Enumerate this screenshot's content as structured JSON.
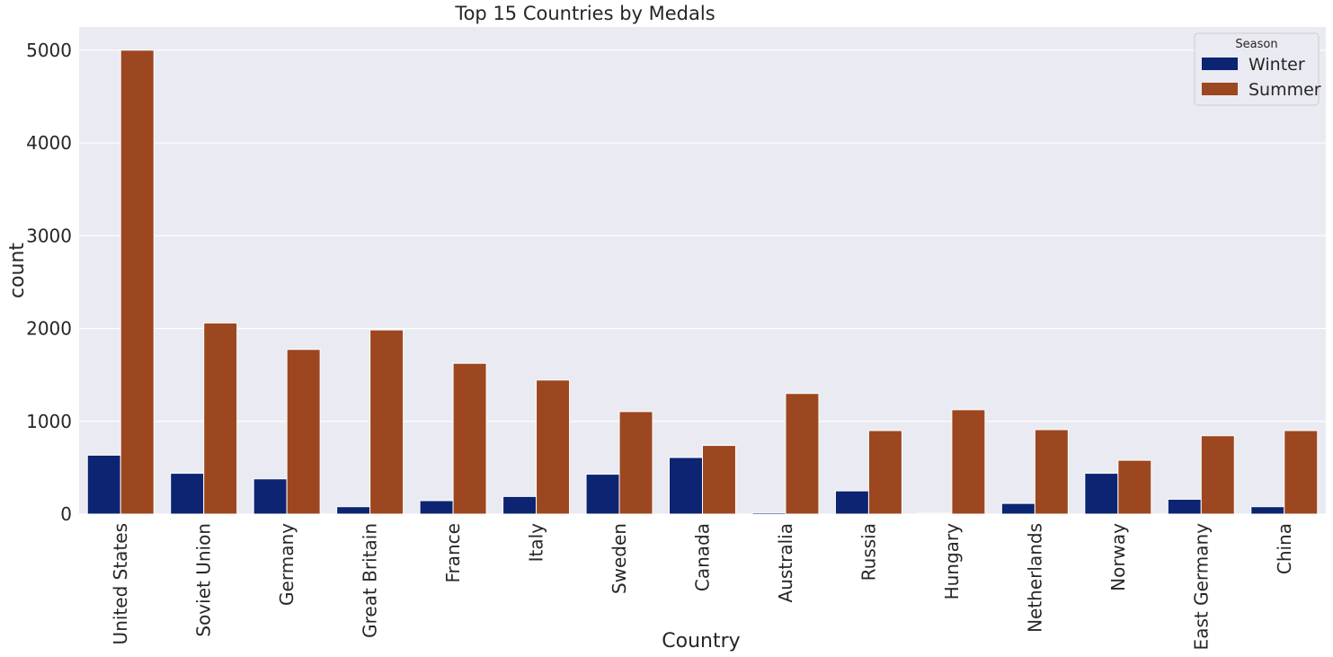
{
  "chart_data": {
    "type": "bar",
    "title": "Top 15 Countries by Medals",
    "xlabel": "Country",
    "ylabel": "count",
    "categories": [
      "United States",
      "Soviet Union",
      "Germany",
      "Great Britain",
      "France",
      "Italy",
      "Sweden",
      "Canada",
      "Australia",
      "Russia",
      "Hungary",
      "Netherlands",
      "Norway",
      "East Germany",
      "China"
    ],
    "series": [
      {
        "name": "Winter",
        "color": "#0c2471",
        "values": [
          635,
          440,
          380,
          80,
          145,
          190,
          430,
          610,
          15,
          250,
          10,
          115,
          440,
          160,
          80
        ]
      },
      {
        "name": "Summer",
        "color": "#9c4720",
        "values": [
          5000,
          2060,
          1775,
          1985,
          1625,
          1445,
          1105,
          740,
          1300,
          900,
          1125,
          910,
          580,
          845,
          900
        ]
      }
    ],
    "ylim": [
      0,
      5250
    ],
    "yticks": [
      0,
      1000,
      2000,
      3000,
      4000,
      5000
    ],
    "legend": {
      "title": "Season",
      "position": "top-right"
    },
    "grid": true,
    "background": "#eaeaf2"
  }
}
